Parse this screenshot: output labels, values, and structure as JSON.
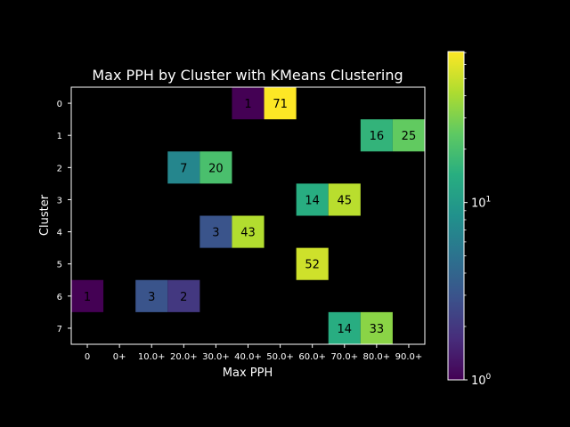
{
  "chart_data": {
    "type": "heatmap",
    "title": "Max PPH by Cluster with KMeans Clustering",
    "xlabel": "Max PPH",
    "ylabel": "Cluster",
    "x_ticks": [
      "0",
      "0+",
      "10.0+",
      "20.0+",
      "30.0+",
      "40.0+",
      "50.0+",
      "60.0+",
      "70.0+",
      "80.0+",
      "90.0+"
    ],
    "y_ticks": [
      "0",
      "1",
      "2",
      "3",
      "4",
      "5",
      "6",
      "7"
    ],
    "colorbar": {
      "scale": "log",
      "range": [
        1,
        71
      ],
      "ticks": [
        "10",
        "10"
      ],
      "tick_exponents": [
        "0",
        "1"
      ],
      "colormap": "viridis"
    },
    "cells": [
      {
        "row": 0,
        "col": 5,
        "value": 1
      },
      {
        "row": 0,
        "col": 6,
        "value": 71
      },
      {
        "row": 1,
        "col": 9,
        "value": 16
      },
      {
        "row": 1,
        "col": 10,
        "value": 25
      },
      {
        "row": 2,
        "col": 3,
        "value": 7
      },
      {
        "row": 2,
        "col": 4,
        "value": 20
      },
      {
        "row": 3,
        "col": 7,
        "value": 14
      },
      {
        "row": 3,
        "col": 8,
        "value": 45
      },
      {
        "row": 4,
        "col": 4,
        "value": 3
      },
      {
        "row": 4,
        "col": 5,
        "value": 43
      },
      {
        "row": 5,
        "col": 7,
        "value": 52
      },
      {
        "row": 6,
        "col": 0,
        "value": 1
      },
      {
        "row": 6,
        "col": 2,
        "value": 3
      },
      {
        "row": 6,
        "col": 3,
        "value": 2
      },
      {
        "row": 7,
        "col": 8,
        "value": 14
      },
      {
        "row": 7,
        "col": 9,
        "value": 33
      }
    ]
  }
}
